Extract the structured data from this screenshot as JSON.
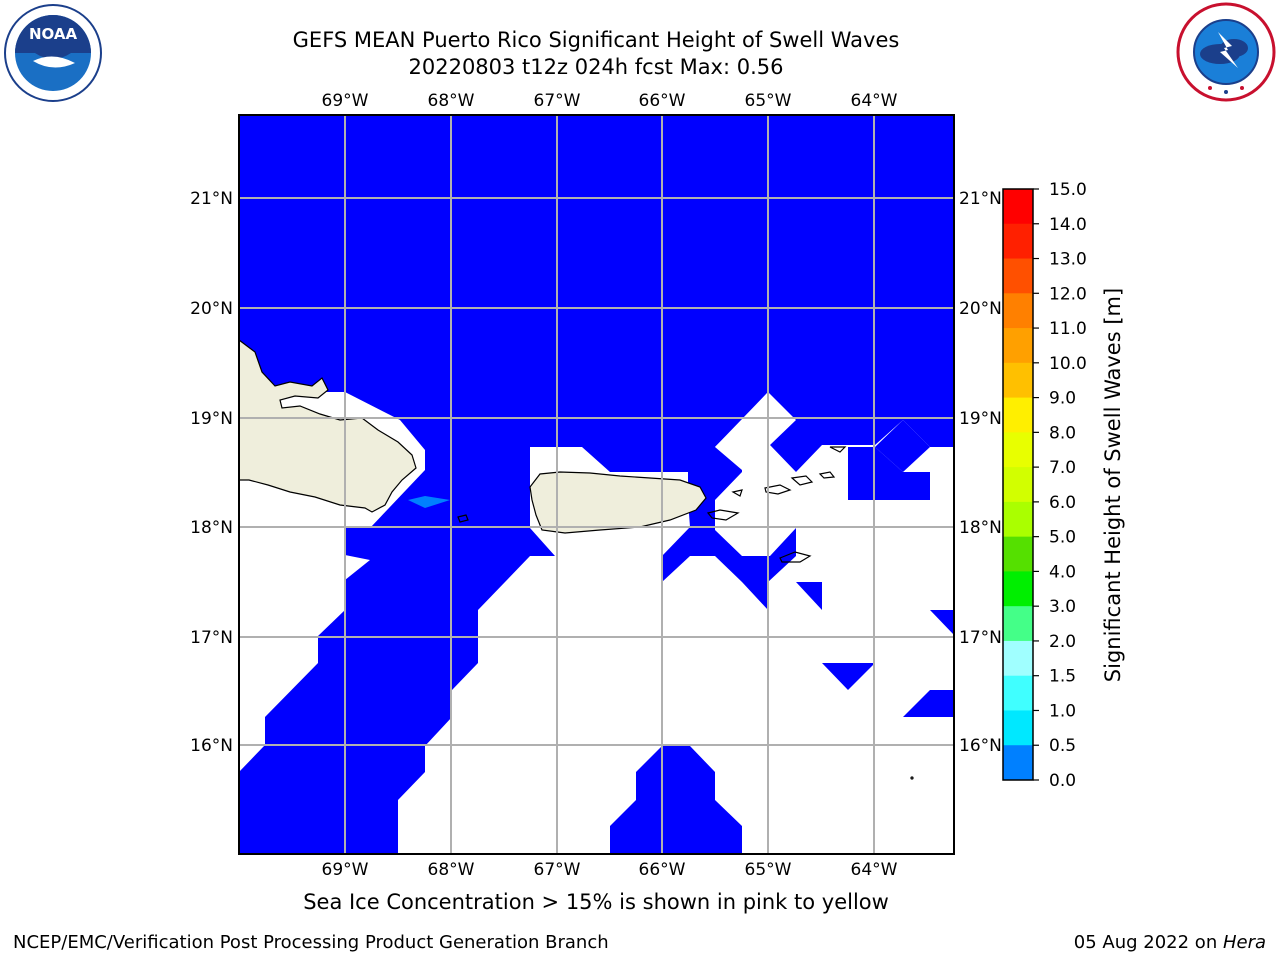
{
  "header": {
    "title_line1": "GEFS MEAN Puerto Rico Significant Height of Swell Waves",
    "title_line2": "20220803 t12z 024h fcst   Max: 0.56"
  },
  "map": {
    "lon_labels": [
      "69°W",
      "68°W",
      "67°W",
      "66°W",
      "65°W",
      "64°W"
    ],
    "lat_labels": [
      "21°N",
      "20°N",
      "19°N",
      "18°N",
      "17°N",
      "16°N"
    ],
    "ocean_color": "#0000ff",
    "land_color": "#efeedc",
    "no_data_color": "#ffffff"
  },
  "colorbar": {
    "label": "Significant Height of Swell Waves [m]",
    "ticks": [
      "15.0",
      "14.0",
      "13.0",
      "12.0",
      "11.0",
      "10.0",
      "9.0",
      "8.0",
      "7.0",
      "6.0",
      "5.0",
      "4.0",
      "3.0",
      "2.0",
      "1.5",
      "1.0",
      "0.5",
      "0.0"
    ],
    "colors": [
      "#ff0000",
      "#ff2000",
      "#ff5000",
      "#ff8000",
      "#ffa000",
      "#ffc000",
      "#ffef00",
      "#e8ff00",
      "#d2ff00",
      "#aaff00",
      "#55e000",
      "#00ef00",
      "#44ff88",
      "#a0ffff",
      "#40ffff",
      "#00e8ff",
      "#0080ff",
      "#0000ff"
    ]
  },
  "notes": {
    "ice": "Sea Ice Concentration > 15% is shown in pink to yellow"
  },
  "footer": {
    "left": "NCEP/EMC/Verification Post Processing Product Generation Branch",
    "date": "05 Aug 2022 on ",
    "machine": "Hera"
  },
  "logos": {
    "noaa_text": "NOAA",
    "nws_text": "NATIONAL WEATHER SERVICE"
  }
}
